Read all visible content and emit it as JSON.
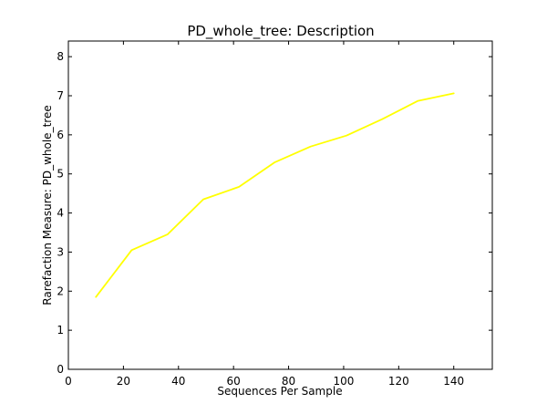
{
  "chart_data": {
    "type": "line",
    "title": "PD_whole_tree: Description",
    "xlabel": "Sequences Per Sample",
    "ylabel": "Rarefaction Measure: PD_whole_tree",
    "xlim": [
      0,
      154
    ],
    "ylim": [
      0,
      8.4
    ],
    "xticks": [
      0,
      20,
      40,
      60,
      80,
      100,
      120,
      140
    ],
    "yticks": [
      0,
      1,
      2,
      3,
      4,
      5,
      6,
      7,
      8
    ],
    "grid": false,
    "series": [
      {
        "color": "#ffff00",
        "x": [
          10,
          23,
          36,
          49,
          62,
          75,
          88,
          101,
          114,
          127,
          140
        ],
        "y": [
          1.85,
          3.05,
          3.45,
          4.35,
          4.67,
          5.3,
          5.7,
          5.98,
          6.4,
          6.87,
          7.06
        ]
      }
    ]
  }
}
